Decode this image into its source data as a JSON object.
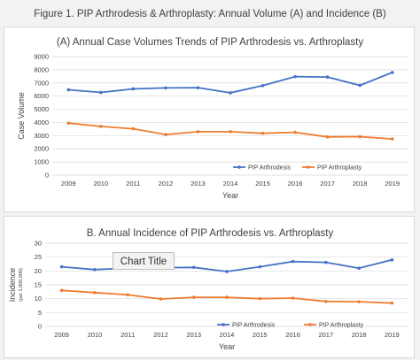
{
  "figure_title": "Figure 1. PIP Arthrodesis & Arthroplasty: Annual Volume (A) and Incidence (B)",
  "overlay_title": "Chart Title",
  "colors": {
    "arthrodesis": "#4472c4",
    "arthroplasty": "#ed7d31",
    "grid": "#d9d9d9"
  },
  "chart_data": [
    {
      "type": "line",
      "title": "(A) Annual Case Volumes Trends of PIP Arthrodesis vs. Arthroplasty",
      "xlabel": "Year",
      "ylabel": "Case Volume",
      "ylim": [
        0,
        9000
      ],
      "yticks": [
        0,
        1000,
        2000,
        3000,
        4000,
        5000,
        6000,
        7000,
        8000,
        9000
      ],
      "categories": [
        "2009",
        "2010",
        "2011",
        "2012",
        "2013",
        "2014",
        "2015",
        "2016",
        "2017",
        "2018",
        "2019"
      ],
      "series": [
        {
          "name": "PIP Arthrodesis",
          "values": [
            6480,
            6280,
            6550,
            6620,
            6640,
            6250,
            6800,
            7480,
            7450,
            6820,
            7800
          ]
        },
        {
          "name": "PIP Arthroplasty",
          "values": [
            3950,
            3700,
            3520,
            3080,
            3300,
            3300,
            3180,
            3250,
            2900,
            2920,
            2750
          ]
        }
      ],
      "grid": true,
      "legend": "bottom-right"
    },
    {
      "type": "line",
      "title": "B. Annual Incidence of PIP Arthrodesis vs. Arthroplasty",
      "xlabel": "Year",
      "ylabel": "Incidence",
      "ylabel_unit": "(per 1,000,000)",
      "ylim": [
        0,
        30
      ],
      "yticks": [
        0,
        5,
        10,
        15,
        20,
        25,
        30
      ],
      "categories": [
        "2009",
        "2010",
        "2011",
        "2012",
        "2013",
        "2014",
        "2015",
        "2016",
        "2017",
        "2018",
        "2019"
      ],
      "series": [
        {
          "name": "PIP Arthrodesis",
          "values": [
            21.5,
            20.5,
            21.0,
            21.2,
            21.3,
            19.8,
            21.5,
            23.4,
            23.1,
            21.0,
            24.0
          ]
        },
        {
          "name": "PIP Arthroplasty",
          "values": [
            13.0,
            12.2,
            11.4,
            9.9,
            10.5,
            10.5,
            10.0,
            10.2,
            9.0,
            8.9,
            8.4
          ]
        }
      ],
      "grid": true,
      "legend": "bottom-right"
    }
  ]
}
